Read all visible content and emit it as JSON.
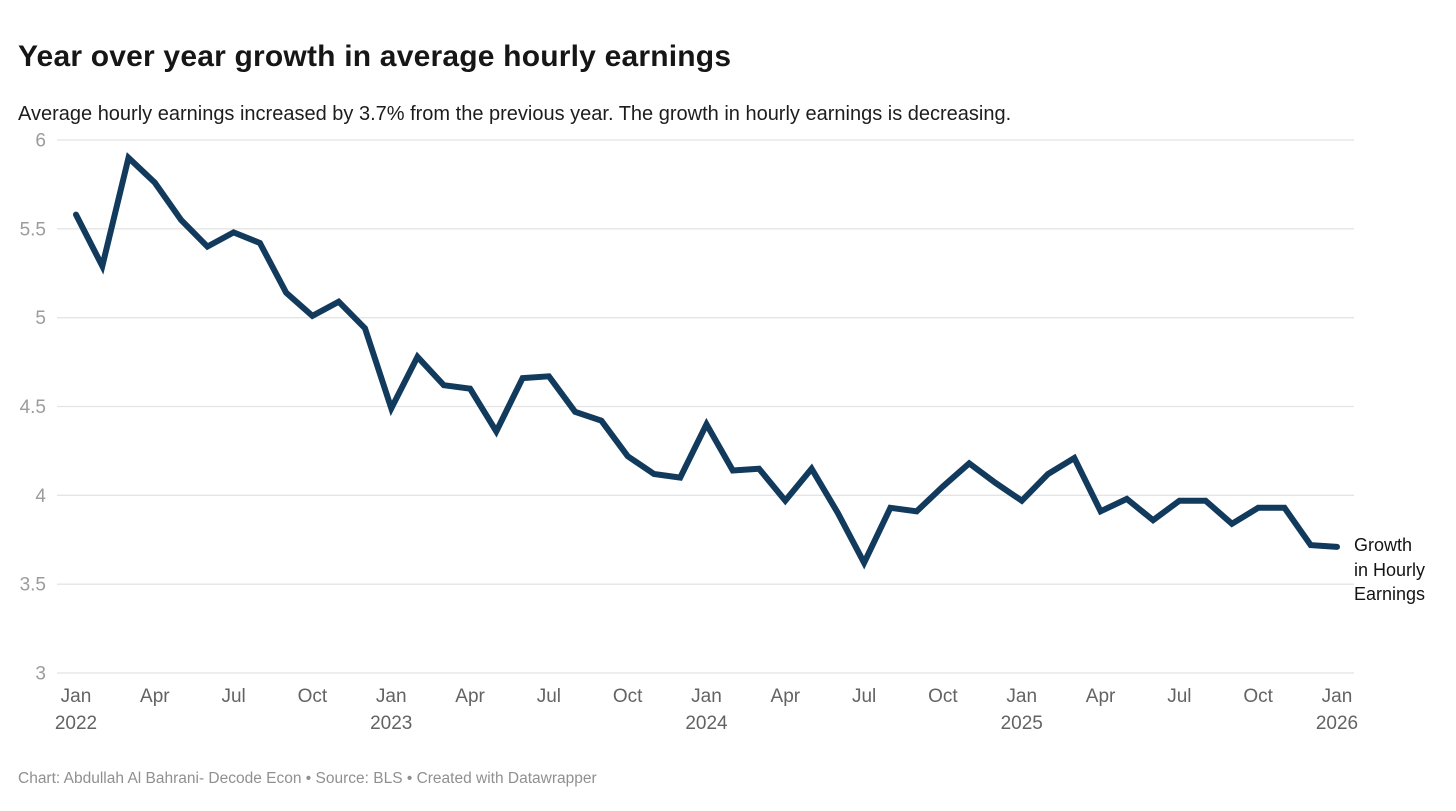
{
  "header": {
    "title": "Year over year growth in average hourly earnings",
    "subtitle": "Average hourly earnings increased by 3.7% from the previous year. The growth in hourly earnings is decreasing."
  },
  "chart_data": {
    "type": "line",
    "title": "Year over year growth in average hourly earnings",
    "x_start": "Jan 2022",
    "x_end": "Jan 2026",
    "x_frequency": "monthly",
    "series": [
      {
        "name": "Growth in Hourly Earnings",
        "values": [
          5.58,
          5.29,
          5.9,
          5.76,
          5.55,
          5.4,
          5.48,
          5.42,
          5.14,
          5.01,
          5.09,
          4.94,
          4.49,
          4.78,
          4.62,
          4.6,
          4.36,
          4.66,
          4.67,
          4.47,
          4.42,
          4.22,
          4.12,
          4.1,
          4.4,
          4.14,
          4.15,
          3.97,
          4.15,
          3.9,
          3.62,
          3.93,
          3.91,
          4.05,
          4.18,
          4.07,
          3.97,
          4.12,
          4.21,
          3.91,
          3.98,
          3.86,
          3.97,
          3.97,
          3.84,
          3.93,
          3.93,
          3.72,
          3.71
        ]
      }
    ],
    "x_tick_labels": [
      {
        "index": 0,
        "month": "Jan",
        "year": "2022"
      },
      {
        "index": 3,
        "month": "Apr"
      },
      {
        "index": 6,
        "month": "Jul"
      },
      {
        "index": 9,
        "month": "Oct"
      },
      {
        "index": 12,
        "month": "Jan",
        "year": "2023"
      },
      {
        "index": 15,
        "month": "Apr"
      },
      {
        "index": 18,
        "month": "Jul"
      },
      {
        "index": 21,
        "month": "Oct"
      },
      {
        "index": 24,
        "month": "Jan",
        "year": "2024"
      },
      {
        "index": 27,
        "month": "Apr"
      },
      {
        "index": 30,
        "month": "Jul"
      },
      {
        "index": 33,
        "month": "Oct"
      },
      {
        "index": 36,
        "month": "Jan",
        "year": "2025"
      },
      {
        "index": 39,
        "month": "Apr"
      },
      {
        "index": 42,
        "month": "Jul"
      },
      {
        "index": 45,
        "month": "Oct"
      },
      {
        "index": 48,
        "month": "Jan",
        "year": "2026"
      }
    ],
    "y_ticks": [
      "6",
      "5.5",
      "5",
      "4.5",
      "4",
      "3.5",
      "3"
    ],
    "ylim": [
      3,
      6
    ],
    "grid": true,
    "legend_position": "right-of-line-end"
  },
  "legend": {
    "series_label": "Growth in Hourly Earnings"
  },
  "footer": {
    "credit": "Chart: Abdullah Al Bahrani- Decode Econ • Source: BLS • Created with Datawrapper"
  },
  "colors": {
    "line": "#113a5d",
    "grid": "#e4e4e4",
    "y_tick": "#9c9c9c",
    "x_tick": "#636363",
    "title": "#161616",
    "subtitle": "#1d1d1d",
    "legend_text": "#141414",
    "footer": "#909090",
    "background": "#ffffff"
  }
}
